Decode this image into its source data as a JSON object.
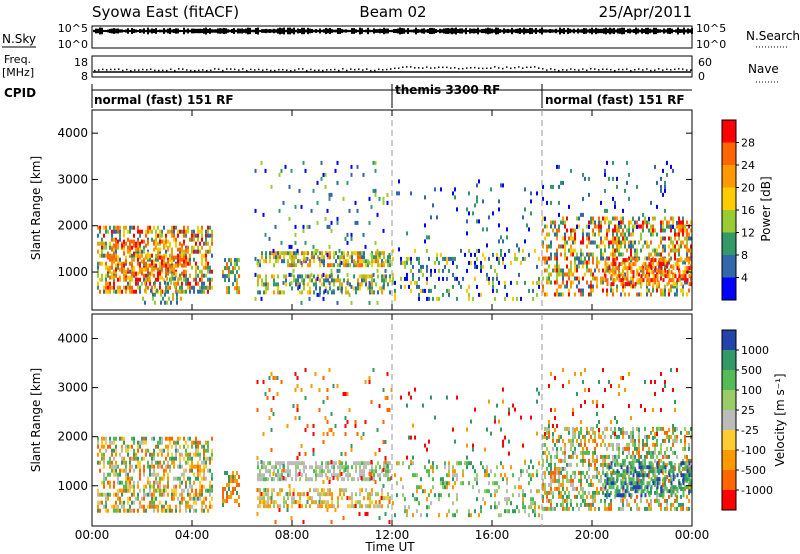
{
  "header": {
    "station": "Syowa East (fitACF)",
    "beam": "Beam 02",
    "date": "25/Apr/2011"
  },
  "nsky": {
    "label": "N.Sky",
    "ticks_left": [
      "10^5",
      "10^0"
    ],
    "ticks_right": [
      "10^5",
      "10^0"
    ],
    "right_label": "N.Search"
  },
  "freq": {
    "label_top": "Freq.",
    "label_bottom": "[MHz]",
    "ticks_left": [
      "18",
      "8"
    ],
    "ticks_right": [
      "60",
      "0"
    ],
    "right_label": "Nave"
  },
  "cpid": {
    "label": "CPID",
    "segments": [
      {
        "label": "normal (fast) 151 RF",
        "start_h": 0,
        "end_h": 12
      },
      {
        "label": "themis 3300 RF",
        "start_h": 12,
        "end_h": 18
      },
      {
        "label": "normal (fast) 151 RF",
        "start_h": 18,
        "end_h": 24
      }
    ]
  },
  "chart_data": [
    {
      "type": "heatmap",
      "name": "power",
      "xlabel": "",
      "ylabel": "Slant Range [km]",
      "xlim_h": [
        0,
        24
      ],
      "ylim": [
        180,
        4500
      ],
      "yticks": [
        "4000",
        "3000",
        "2000",
        "1000"
      ],
      "colorbar": {
        "label": "Power [dB]",
        "ticks": [
          "28",
          "24",
          "20",
          "16",
          "12",
          "8",
          "4"
        ],
        "colors": [
          "#ff0000",
          "#ff6600",
          "#ff9900",
          "#ffcc00",
          "#99cc33",
          "#339966",
          "#3366aa",
          "#0000ff"
        ]
      },
      "blocks": [
        {
          "t": [
            0.2,
            4.8
          ],
          "r": [
            600,
            2000
          ],
          "d": 0.5,
          "pal": [
            6,
            5,
            4,
            2,
            1,
            0,
            3
          ]
        },
        {
          "t": [
            0.6,
            3.8
          ],
          "r": [
            850,
            1700
          ],
          "d": 0.4,
          "pal": [
            1,
            0,
            2,
            1,
            3
          ]
        },
        {
          "t": [
            2.0,
            3.6
          ],
          "r": [
            300,
            900
          ],
          "d": 0.35,
          "pal": [
            5,
            4,
            6,
            2
          ]
        },
        {
          "t": [
            5.2,
            5.9
          ],
          "r": [
            600,
            1300
          ],
          "d": 0.5,
          "pal": [
            1,
            2,
            4,
            5,
            6
          ]
        },
        {
          "t": [
            6.6,
            11.9
          ],
          "r": [
            1150,
            1450
          ],
          "d": 0.6,
          "pal": [
            1,
            2,
            3,
            4,
            5,
            6
          ]
        },
        {
          "t": [
            6.6,
            11.9
          ],
          "r": [
            550,
            950
          ],
          "d": 0.45,
          "pal": [
            4,
            5,
            6,
            2,
            3
          ]
        },
        {
          "t": [
            6.5,
            12.0
          ],
          "r": [
            300,
            3400
          ],
          "d": 0.06,
          "pal": [
            5,
            6,
            7,
            4
          ]
        },
        {
          "t": [
            12.0,
            17.9
          ],
          "r": [
            400,
            1500
          ],
          "d": 0.2,
          "pal": [
            5,
            6,
            7,
            4,
            3
          ]
        },
        {
          "t": [
            12.0,
            17.9
          ],
          "r": [
            1500,
            3000
          ],
          "d": 0.04,
          "pal": [
            5,
            6,
            7
          ]
        },
        {
          "t": [
            18.0,
            24.0
          ],
          "r": [
            500,
            2200
          ],
          "d": 0.45,
          "pal": [
            6,
            5,
            4,
            3,
            2,
            1,
            0
          ]
        },
        {
          "t": [
            20.5,
            24.0
          ],
          "r": [
            700,
            1300
          ],
          "d": 0.5,
          "pal": [
            1,
            0,
            2,
            3
          ]
        },
        {
          "t": [
            18.0,
            23.5
          ],
          "r": [
            2000,
            3400
          ],
          "d": 0.06,
          "pal": [
            5,
            6,
            7
          ]
        }
      ]
    },
    {
      "type": "heatmap",
      "name": "velocity",
      "xlabel": "Time UT",
      "ylabel": "Slant Range [km]",
      "xlim_h": [
        0,
        24
      ],
      "ylim": [
        180,
        4500
      ],
      "xticks": [
        "00:00",
        "04:00",
        "08:00",
        "12:00",
        "16:00",
        "20:00",
        "00:00"
      ],
      "yticks": [
        "4000",
        "3000",
        "2000",
        "1000"
      ],
      "colorbar": {
        "label": "Velocity [m s⁻¹]",
        "ticks": [
          "1000",
          "500",
          "100",
          "25",
          "-25",
          "-100",
          "-500",
          "-1000"
        ],
        "colors": [
          "#2244aa",
          "#339966",
          "#55bb55",
          "#99cc66",
          "#bbbbbb",
          "#ffcc33",
          "#ff9900",
          "#ff6600",
          "#ff0000"
        ]
      },
      "blocks": [
        {
          "t": [
            0.2,
            4.8
          ],
          "r": [
            500,
            2000
          ],
          "d": 0.5,
          "pal": [
            6,
            7,
            5,
            1,
            2,
            4
          ]
        },
        {
          "t": [
            5.2,
            5.9
          ],
          "r": [
            600,
            1300
          ],
          "d": 0.5,
          "pal": [
            6,
            7,
            1
          ]
        },
        {
          "t": [
            6.6,
            11.9
          ],
          "r": [
            1150,
            1500
          ],
          "d": 0.6,
          "pal": [
            4,
            4,
            4,
            2,
            3
          ]
        },
        {
          "t": [
            6.6,
            11.9
          ],
          "r": [
            550,
            950
          ],
          "d": 0.45,
          "pal": [
            5,
            6,
            4,
            3
          ]
        },
        {
          "t": [
            6.5,
            12.0
          ],
          "r": [
            300,
            3400
          ],
          "d": 0.06,
          "pal": [
            6,
            7,
            1,
            8
          ]
        },
        {
          "t": [
            12.0,
            17.9
          ],
          "r": [
            400,
            1500
          ],
          "d": 0.2,
          "pal": [
            2,
            3,
            1,
            4,
            6
          ]
        },
        {
          "t": [
            12.0,
            17.9
          ],
          "r": [
            1500,
            3000
          ],
          "d": 0.04,
          "pal": [
            6,
            1,
            8
          ]
        },
        {
          "t": [
            18.0,
            24.0
          ],
          "r": [
            500,
            2200
          ],
          "d": 0.45,
          "pal": [
            1,
            2,
            3,
            4,
            6,
            7
          ]
        },
        {
          "t": [
            20.5,
            24.0
          ],
          "r": [
            800,
            1500
          ],
          "d": 0.5,
          "pal": [
            1,
            0,
            2
          ]
        },
        {
          "t": [
            18.0,
            23.5
          ],
          "r": [
            2000,
            3400
          ],
          "d": 0.06,
          "pal": [
            1,
            6,
            8
          ]
        }
      ]
    }
  ]
}
